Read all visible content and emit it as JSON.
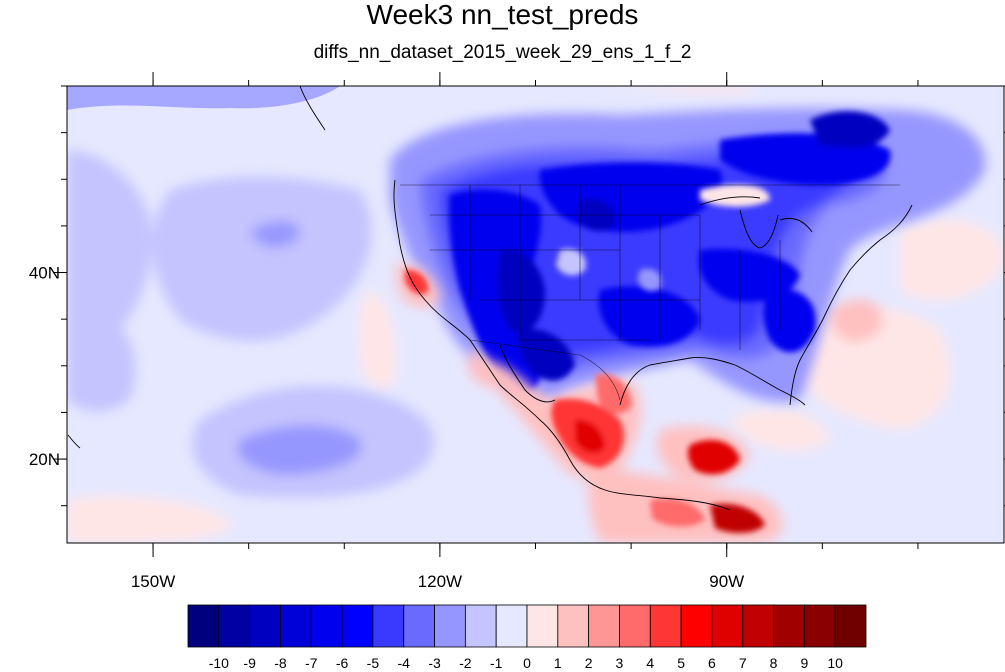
{
  "title": "Week3 nn_test_preds",
  "subtitle": "diffs_nn_dataset_2015_week_29_ens_1_f_2",
  "axes": {
    "lon_ticks": [
      {
        "value": -150,
        "label": "150W"
      },
      {
        "value": -120,
        "label": "120W"
      },
      {
        "value": -90,
        "label": "90W"
      }
    ],
    "lat_ticks": [
      {
        "value": 40,
        "label": "40N"
      },
      {
        "value": 20,
        "label": "20N"
      }
    ],
    "lon_range": [
      -159,
      -61
    ],
    "lat_range": [
      11,
      60
    ]
  },
  "colorbar": {
    "labels": [
      "-10",
      "-9",
      "-8",
      "-7",
      "-6",
      "-5",
      "-4",
      "-3",
      "-2",
      "-1",
      "0",
      "1",
      "2",
      "3",
      "4",
      "5",
      "6",
      "7",
      "8",
      "9",
      "10"
    ],
    "colors": [
      "#00007f",
      "#0000a3",
      "#0000c0",
      "#0000d8",
      "#0000ee",
      "#0000ff",
      "#3a3aff",
      "#6a6aff",
      "#9696ff",
      "#c4c4ff",
      "#e6e8ff",
      "#ffe6e6",
      "#ffc0c0",
      "#ff9696",
      "#ff6a6a",
      "#ff3636",
      "#ff0000",
      "#e00000",
      "#c00000",
      "#a00000",
      "#8a0000",
      "#700000"
    ]
  }
}
